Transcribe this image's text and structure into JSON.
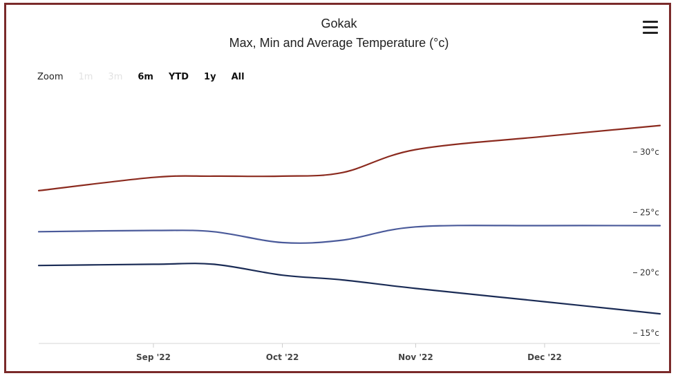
{
  "header": {
    "title": "Gokak",
    "subtitle": "Max, Min and Average Temperature (°c)",
    "menu_icon": "hamburger-menu-icon"
  },
  "zoom": {
    "label": "Zoom",
    "buttons": [
      {
        "label": "1m",
        "enabled": false
      },
      {
        "label": "3m",
        "enabled": false
      },
      {
        "label": "6m",
        "enabled": true
      },
      {
        "label": "YTD",
        "enabled": true
      },
      {
        "label": "1y",
        "enabled": true
      },
      {
        "label": "All",
        "enabled": true
      }
    ]
  },
  "chart_data": {
    "type": "line",
    "title": "Gokak",
    "subtitle": "Max, Min and Average Temperature (°c)",
    "x": [
      "2022-08-01",
      "2022-09-01",
      "2022-09-15",
      "2022-10-01",
      "2022-10-15",
      "2022-11-01",
      "2022-12-01",
      "2022-12-31"
    ],
    "series": [
      {
        "color": "#8b2a1e",
        "values": [
          26.8,
          27.9,
          28.0,
          28.0,
          28.3,
          30.2,
          31.3,
          32.2
        ]
      },
      {
        "color": "#4a5a9a",
        "values": [
          23.4,
          23.5,
          23.4,
          22.5,
          22.7,
          23.8,
          23.9,
          23.9
        ]
      },
      {
        "color": "#1a2b55",
        "values": [
          20.6,
          20.7,
          20.7,
          19.8,
          19.4,
          18.7,
          17.6,
          16.6
        ]
      }
    ],
    "x_ticks": [
      "Sep '22",
      "Oct '22",
      "Nov '22",
      "Dec '22"
    ],
    "y_ticks": [
      {
        "value": 15,
        "label": "15°c"
      },
      {
        "value": 20,
        "label": "20°c"
      },
      {
        "value": 25,
        "label": "25°c"
      },
      {
        "value": 30,
        "label": "30°c"
      }
    ],
    "ylim": [
      14.5,
      33
    ],
    "grid": false,
    "y_axis_side": "right"
  }
}
